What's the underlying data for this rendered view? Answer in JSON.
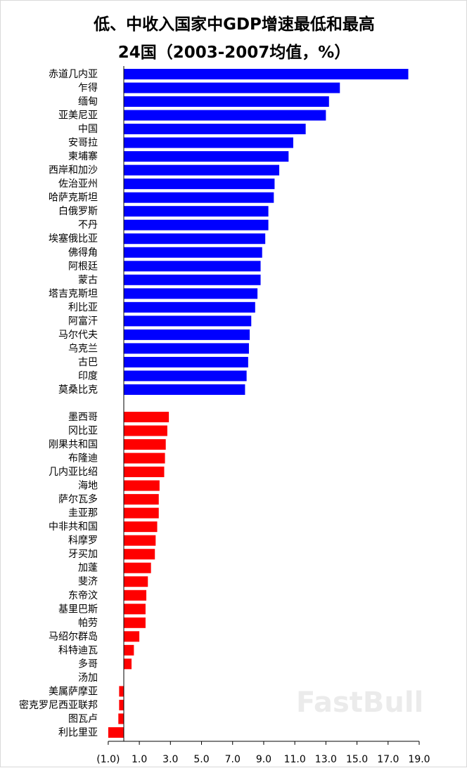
{
  "chart_data": {
    "type": "bar",
    "orientation": "horizontal",
    "title_line1": "低、中收入国家中GDP增速最低和最高",
    "title_line2": "24国（2003-2007均值，%）",
    "xlim": [
      -1.0,
      19.0
    ],
    "x_ticks": [
      -1.0,
      1.0,
      3.0,
      5.0,
      7.0,
      9.0,
      11.0,
      13.0,
      15.0,
      17.0,
      19.0
    ],
    "x_tick_labels": [
      "(1.0)",
      "1.0",
      "3.0",
      "5.0",
      "7.0",
      "9.0",
      "11.0",
      "13.0",
      "15.0",
      "17.0",
      "19.0"
    ],
    "negative_tick_color": "#ff0000",
    "series": [
      {
        "color": "#0000ff",
        "categories": [
          "赤道几内亚",
          "乍得",
          "缅甸",
          "亚美尼亚",
          "中国",
          "安哥拉",
          "柬埔寨",
          "西岸和加沙",
          "佐治亚州",
          "哈萨克斯坦",
          "白俄罗斯",
          "不丹",
          "埃塞俄比亚",
          "佛得角",
          "阿根廷",
          "蒙古",
          "塔吉克斯坦",
          "利比亚",
          "阿富汗",
          "马尔代夫",
          "乌克兰",
          "古巴",
          "印度",
          "莫桑比克"
        ],
        "values": [
          18.3,
          13.9,
          13.2,
          13.0,
          11.7,
          10.9,
          10.6,
          10.0,
          9.7,
          9.65,
          9.3,
          9.3,
          9.1,
          8.9,
          8.8,
          8.8,
          8.6,
          8.45,
          8.2,
          8.1,
          8.05,
          8.0,
          7.9,
          7.8
        ]
      },
      {
        "color": "#ff0000",
        "categories": [
          "墨西哥",
          "冈比亚",
          "刚果共和国",
          "布隆迪",
          "几内亚比绍",
          "海地",
          "萨尔瓦多",
          "圭亚那",
          "中非共和国",
          "科摩罗",
          "牙买加",
          "加蓬",
          "斐济",
          "东帝汶",
          "基里巴斯",
          "帕劳",
          "马绍尔群岛",
          "科特迪瓦",
          "多哥",
          "汤加",
          "美属萨摩亚",
          "密克罗尼西亚联邦",
          "图瓦卢",
          "利比里亚"
        ],
        "values": [
          2.9,
          2.8,
          2.7,
          2.65,
          2.6,
          2.3,
          2.25,
          2.25,
          2.15,
          2.05,
          2.0,
          1.75,
          1.55,
          1.45,
          1.4,
          1.4,
          1.0,
          0.65,
          0.5,
          0.0,
          -0.3,
          -0.3,
          -0.35,
          -1.0
        ]
      }
    ]
  },
  "watermark": "FastBull"
}
